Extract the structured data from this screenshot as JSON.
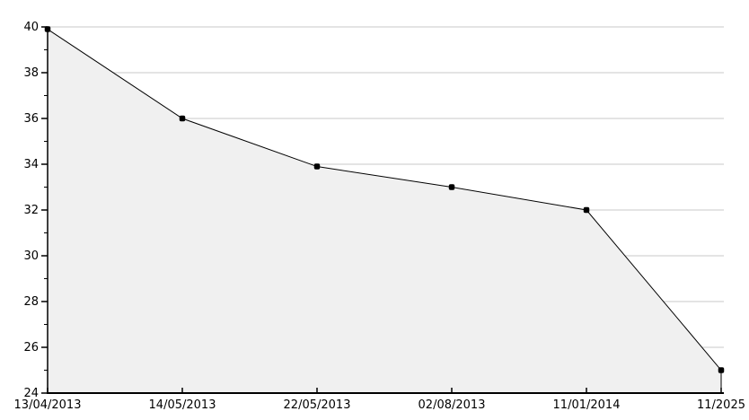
{
  "chart_data": {
    "type": "area",
    "categories": [
      "13/04/2013",
      "14/05/2013",
      "22/05/2013",
      "02/08/2013",
      "11/01/2014",
      "11/2025"
    ],
    "values": [
      39.9,
      36,
      33.9,
      33,
      32,
      25
    ],
    "series_name": "value-over-time",
    "xlabel": "",
    "ylabel": "",
    "ylim": [
      24,
      40
    ],
    "y_ticks": [
      24,
      26,
      28,
      30,
      32,
      34,
      36,
      38,
      40
    ],
    "y_minor_ticks": [
      25,
      27,
      29,
      31,
      33,
      35,
      37,
      39
    ],
    "grid": true,
    "legend": false,
    "colors": {
      "line": "#000000",
      "marker": "#000000",
      "area_fill": "#f0f0f0",
      "grid_line": "#dcdcdc",
      "axis": "#000000",
      "tick_label": "#000000",
      "background": "#ffffff"
    }
  }
}
